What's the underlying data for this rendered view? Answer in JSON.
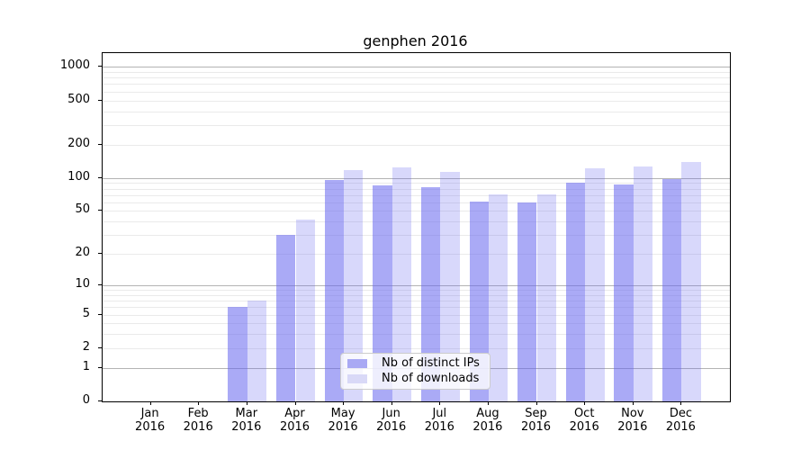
{
  "figure": {
    "title": "genphen 2016"
  },
  "chart_data": {
    "type": "bar",
    "title": "genphen 2016",
    "categories": [
      {
        "month": "Jan",
        "year": "2016"
      },
      {
        "month": "Feb",
        "year": "2016"
      },
      {
        "month": "Mar",
        "year": "2016"
      },
      {
        "month": "Apr",
        "year": "2016"
      },
      {
        "month": "May",
        "year": "2016"
      },
      {
        "month": "Jun",
        "year": "2016"
      },
      {
        "month": "Jul",
        "year": "2016"
      },
      {
        "month": "Aug",
        "year": "2016"
      },
      {
        "month": "Sep",
        "year": "2016"
      },
      {
        "month": "Oct",
        "year": "2016"
      },
      {
        "month": "Nov",
        "year": "2016"
      },
      {
        "month": "Dec",
        "year": "2016"
      }
    ],
    "series": [
      {
        "name": "Nb of distinct IPs",
        "swatch_color": "#a9a9f4",
        "fill_color": "rgba(101,101,238,0.55)",
        "values": [
          0,
          0,
          6,
          30,
          95,
          85,
          82,
          61,
          60,
          91,
          88,
          97
        ]
      },
      {
        "name": "Nb of downloads",
        "swatch_color": "#d9d9f7",
        "fill_color": "rgba(101,101,238,0.25)",
        "values": [
          0,
          0,
          7,
          42,
          117,
          124,
          113,
          71,
          71,
          123,
          127,
          140
        ]
      }
    ],
    "y_axis": {
      "scale": "log1p",
      "tick_values": [
        0,
        1,
        2,
        5,
        10,
        20,
        50,
        100,
        200,
        500,
        1000
      ],
      "major_grid_values": [
        1,
        10,
        100,
        1000
      ],
      "grid": "on"
    },
    "x_axis": {
      "grid": "off"
    },
    "legend": {
      "position": "lower-center-inside"
    },
    "colors": {
      "major_grid": "#b3b3b3",
      "minor_grid": "#eaeaea",
      "spine": "#000000"
    }
  }
}
